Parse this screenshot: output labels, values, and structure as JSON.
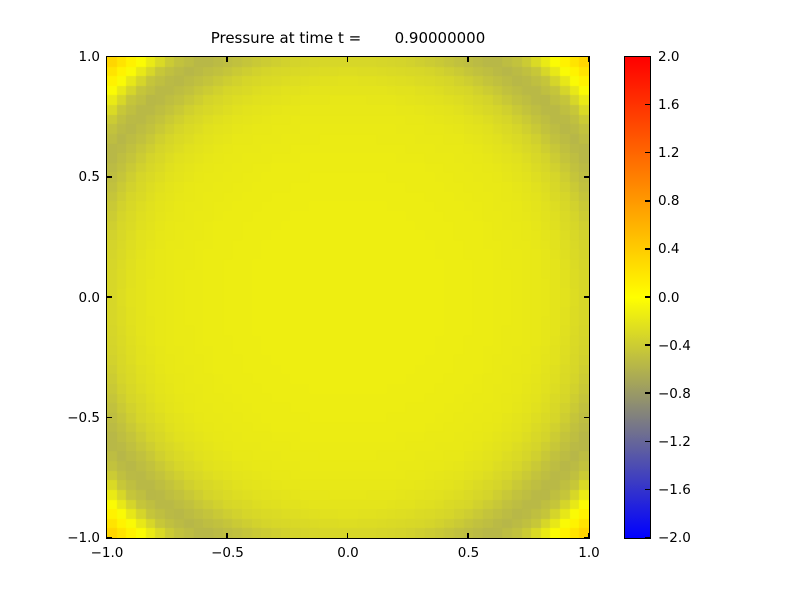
{
  "chart_data": {
    "type": "heatmap",
    "title": "Pressure at time t =       0.90000000",
    "x_range": [
      -1.0,
      1.0
    ],
    "y_range": [
      -1.0,
      1.0
    ],
    "value_range": [
      -2.0,
      2.0
    ],
    "grid_shape": [
      50,
      50
    ],
    "grid_on": false,
    "background": "#ffffff",
    "axes_color": "#000000",
    "x_ticks": {
      "values": [
        -1.0,
        -0.5,
        0.0,
        0.5,
        1.0
      ],
      "labels": [
        "−1.0",
        "−0.5",
        "0.0",
        "0.5",
        "1.0"
      ]
    },
    "y_ticks": {
      "values": [
        1.0,
        0.5,
        0.0,
        -0.5,
        -1.0
      ],
      "labels": [
        "1.0",
        "0.5",
        "0.0",
        "−0.5",
        "−1.0"
      ]
    },
    "colorbar": {
      "position": "right",
      "tick_values": [
        2.0,
        1.6,
        1.2,
        0.8,
        0.4,
        0.0,
        -0.4,
        -0.8,
        -1.2,
        -1.6,
        -2.0
      ],
      "tick_labels": [
        "2.0",
        "1.6",
        "1.2",
        "0.8",
        "0.4",
        "0.0",
        "−0.4",
        "−0.8",
        "−1.2",
        "−1.6",
        "−2.0"
      ],
      "colormap_stops": [
        {
          "value": -2.0,
          "color": "#0000ff"
        },
        {
          "value": 0.0,
          "color": "#ffff00"
        },
        {
          "value": 2.0,
          "color": "#ff0000"
        }
      ]
    },
    "field": {
      "symmetry": "radial",
      "note": "pressure p(x,y) = profile(sqrt(x^2+y^2)); yellow interior, olive ring dip near r=1.15, bright positive pulse in corners",
      "radial_profile": {
        "r": [
          0.0,
          0.3,
          0.6,
          0.8,
          0.9,
          1.0,
          1.08,
          1.15,
          1.22,
          1.28,
          1.33,
          1.38,
          1.415
        ],
        "pressure": [
          -0.13,
          -0.13,
          -0.15,
          -0.18,
          -0.23,
          -0.33,
          -0.48,
          -0.57,
          -0.45,
          -0.15,
          0.1,
          0.3,
          0.43
        ]
      }
    }
  }
}
